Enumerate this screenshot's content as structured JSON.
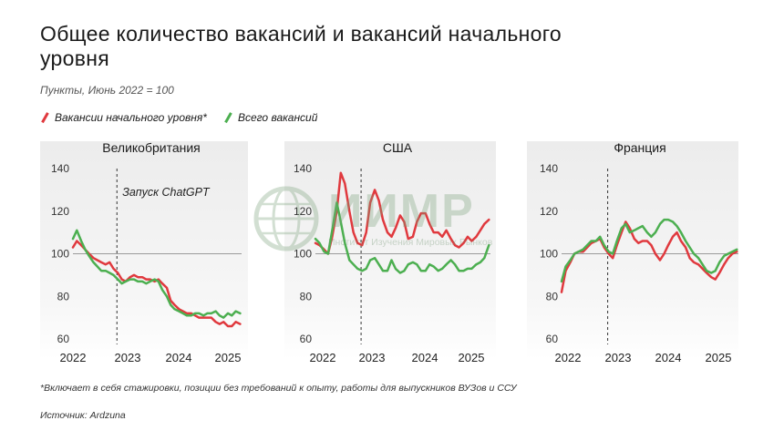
{
  "title": "Общее количество вакансий и вакансий начального уровня",
  "subtitle": "Пункты, Июнь 2022 = 100",
  "legend": [
    {
      "label": "Вакансии начального уровня*",
      "color": "#e0393e"
    },
    {
      "label": "Всего вакансий",
      "color": "#4caf50"
    }
  ],
  "footnote": "*Включает в себя стажировки, позиции без требований к опыту, работы для выпускников ВУЗов и ССУ",
  "source": "Источник: Ardzuna",
  "watermark": {
    "main": "ИИМР",
    "sub": "Институт Изучения Мировых Рынков"
  },
  "colors": {
    "entry": "#e0393e",
    "total": "#4caf50",
    "panel_bg": "#f0f0f0",
    "axis": "#aaaaaa",
    "text": "#1a1a1a"
  },
  "chart_data": [
    {
      "type": "line",
      "title": "Великобритания",
      "annotation": "Запуск ChatGPT",
      "ylim": [
        60,
        140
      ],
      "yticks": [
        60,
        80,
        100,
        120,
        140
      ],
      "xticks": [
        "2022",
        "2023",
        "2024",
        "2025"
      ],
      "xlim": [
        2022.0,
        2025.45
      ],
      "event_x": 2022.9,
      "reference_y": 100,
      "series": [
        {
          "name": "Вакансии начального уровня*",
          "key": "entry",
          "x": [
            2022.0,
            2022.08,
            2022.17,
            2022.25,
            2022.33,
            2022.42,
            2022.5,
            2022.58,
            2022.67,
            2022.75,
            2022.83,
            2022.92,
            2023.0,
            2023.08,
            2023.17,
            2023.25,
            2023.33,
            2023.42,
            2023.5,
            2023.58,
            2023.67,
            2023.75,
            2023.83,
            2023.92,
            2024.0,
            2024.08,
            2024.17,
            2024.25,
            2024.33,
            2024.42,
            2024.5,
            2024.58,
            2024.67,
            2024.75,
            2024.83,
            2024.92,
            2025.0,
            2025.08,
            2025.17,
            2025.25,
            2025.33,
            2025.42
          ],
          "y": [
            103,
            106,
            104,
            102,
            100,
            98,
            97,
            96,
            95,
            96,
            93,
            91,
            88,
            87,
            89,
            90,
            89,
            89,
            88,
            88,
            87,
            88,
            86,
            84,
            78,
            76,
            74,
            73,
            72,
            72,
            71,
            70,
            70,
            70,
            70,
            68,
            67,
            68,
            66,
            66,
            68,
            67
          ]
        },
        {
          "name": "Всего вакансий",
          "key": "total",
          "x": [
            2022.0,
            2022.08,
            2022.17,
            2022.25,
            2022.33,
            2022.42,
            2022.5,
            2022.58,
            2022.67,
            2022.75,
            2022.83,
            2022.92,
            2023.0,
            2023.08,
            2023.17,
            2023.25,
            2023.33,
            2023.42,
            2023.5,
            2023.58,
            2023.67,
            2023.75,
            2023.83,
            2023.92,
            2024.0,
            2024.08,
            2024.17,
            2024.25,
            2024.33,
            2024.42,
            2024.5,
            2024.58,
            2024.67,
            2024.75,
            2024.83,
            2024.92,
            2025.0,
            2025.08,
            2025.17,
            2025.25,
            2025.33,
            2025.42
          ],
          "y": [
            107,
            111,
            106,
            102,
            99,
            96,
            94,
            92,
            92,
            91,
            90,
            88,
            86,
            87,
            88,
            88,
            87,
            87,
            86,
            87,
            88,
            87,
            83,
            80,
            76,
            74,
            73,
            72,
            71,
            71,
            72,
            72,
            71,
            72,
            72,
            73,
            71,
            70,
            72,
            71,
            73,
            72
          ]
        }
      ]
    },
    {
      "type": "line",
      "title": "США",
      "ylim": [
        60,
        140
      ],
      "yticks": [
        60,
        80,
        100,
        120,
        140
      ],
      "xticks": [
        "2022",
        "2023",
        "2024",
        "2025"
      ],
      "xlim": [
        2022.0,
        2025.45
      ],
      "event_x": 2022.9,
      "reference_y": 100,
      "series": [
        {
          "name": "Вакансии начального уровня*",
          "key": "entry",
          "x": [
            2022.0,
            2022.08,
            2022.17,
            2022.25,
            2022.33,
            2022.42,
            2022.5,
            2022.58,
            2022.67,
            2022.75,
            2022.83,
            2022.92,
            2023.0,
            2023.08,
            2023.17,
            2023.25,
            2023.33,
            2023.42,
            2023.5,
            2023.58,
            2023.67,
            2023.75,
            2023.83,
            2023.92,
            2024.0,
            2024.08,
            2024.17,
            2024.25,
            2024.33,
            2024.42,
            2024.5,
            2024.58,
            2024.67,
            2024.75,
            2024.83,
            2024.92,
            2025.0,
            2025.08,
            2025.17,
            2025.25,
            2025.33,
            2025.42
          ],
          "y": [
            105,
            104,
            102,
            100,
            108,
            120,
            138,
            133,
            120,
            110,
            105,
            104,
            110,
            124,
            130,
            125,
            116,
            110,
            108,
            112,
            118,
            115,
            107,
            108,
            115,
            119,
            119,
            114,
            110,
            110,
            108,
            111,
            107,
            104,
            103,
            105,
            108,
            106,
            108,
            111,
            114,
            116
          ]
        },
        {
          "name": "Всего вакансий",
          "key": "total",
          "x": [
            2022.0,
            2022.08,
            2022.17,
            2022.25,
            2022.33,
            2022.42,
            2022.5,
            2022.58,
            2022.67,
            2022.75,
            2022.83,
            2022.92,
            2023.0,
            2023.08,
            2023.17,
            2023.25,
            2023.33,
            2023.42,
            2023.5,
            2023.58,
            2023.67,
            2023.75,
            2023.83,
            2023.92,
            2024.0,
            2024.08,
            2024.17,
            2024.25,
            2024.33,
            2024.42,
            2024.5,
            2024.58,
            2024.67,
            2024.75,
            2024.83,
            2024.92,
            2025.0,
            2025.08,
            2025.17,
            2025.25,
            2025.33,
            2025.42
          ],
          "y": [
            107,
            105,
            101,
            100,
            111,
            124,
            115,
            105,
            97,
            95,
            93,
            92,
            93,
            97,
            98,
            95,
            92,
            92,
            97,
            93,
            91,
            92,
            95,
            96,
            95,
            92,
            92,
            95,
            94,
            92,
            93,
            95,
            97,
            95,
            92,
            92,
            93,
            93,
            95,
            96,
            98,
            104
          ]
        }
      ]
    },
    {
      "type": "line",
      "title": "Франция",
      "ylim": [
        60,
        140
      ],
      "yticks": [
        60,
        80,
        100,
        120,
        140
      ],
      "xticks": [
        "2022",
        "2023",
        "2024",
        "2025"
      ],
      "xlim": [
        2022.0,
        2025.45
      ],
      "event_x": 2022.9,
      "reference_y": 100,
      "series": [
        {
          "name": "Вакансии начального уровня*",
          "key": "entry",
          "x": [
            2022.0,
            2022.08,
            2022.17,
            2022.25,
            2022.33,
            2022.42,
            2022.5,
            2022.58,
            2022.67,
            2022.75,
            2022.83,
            2022.92,
            2023.0,
            2023.08,
            2023.17,
            2023.25,
            2023.33,
            2023.42,
            2023.5,
            2023.58,
            2023.67,
            2023.75,
            2023.83,
            2023.92,
            2024.0,
            2024.08,
            2024.17,
            2024.25,
            2024.33,
            2024.42,
            2024.5,
            2024.58,
            2024.67,
            2024.75,
            2024.83,
            2024.92,
            2025.0,
            2025.08,
            2025.17,
            2025.25,
            2025.33,
            2025.42
          ],
          "y": [
            82,
            92,
            96,
            100,
            101,
            101,
            103,
            105,
            106,
            107,
            103,
            100,
            98,
            104,
            110,
            115,
            112,
            107,
            105,
            106,
            106,
            104,
            100,
            97,
            100,
            104,
            108,
            110,
            106,
            103,
            98,
            96,
            95,
            93,
            91,
            89,
            88,
            91,
            95,
            98,
            100,
            101
          ]
        },
        {
          "name": "Всего вакансий",
          "key": "total",
          "x": [
            2022.0,
            2022.08,
            2022.17,
            2022.25,
            2022.33,
            2022.42,
            2022.5,
            2022.58,
            2022.67,
            2022.75,
            2022.83,
            2022.92,
            2023.0,
            2023.08,
            2023.17,
            2023.25,
            2023.33,
            2023.42,
            2023.5,
            2023.58,
            2023.67,
            2023.75,
            2023.83,
            2023.92,
            2024.0,
            2024.08,
            2024.17,
            2024.25,
            2024.33,
            2024.42,
            2024.5,
            2024.58,
            2024.67,
            2024.75,
            2024.83,
            2024.92,
            2025.0,
            2025.08,
            2025.17,
            2025.25,
            2025.33,
            2025.42
          ],
          "y": [
            87,
            94,
            97,
            100,
            101,
            102,
            104,
            106,
            106,
            108,
            104,
            101,
            100,
            106,
            112,
            114,
            110,
            111,
            112,
            113,
            110,
            108,
            110,
            114,
            116,
            116,
            115,
            113,
            110,
            106,
            103,
            100,
            98,
            95,
            92,
            91,
            92,
            96,
            99,
            100,
            101,
            102
          ]
        }
      ]
    }
  ]
}
